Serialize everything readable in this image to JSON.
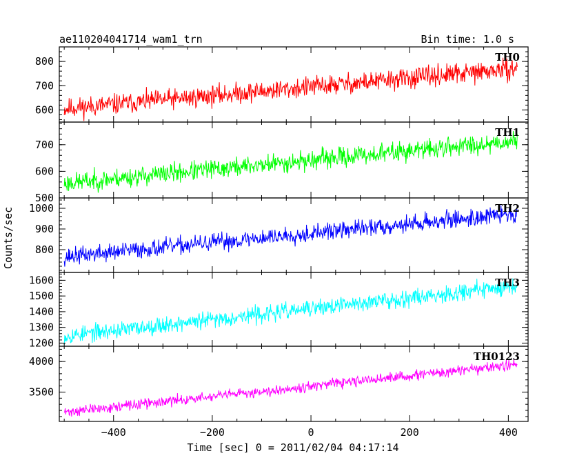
{
  "header": {
    "title": "ae110204041714_wam1_trn",
    "bin_time": "Bin time: 1.0 s"
  },
  "chart_data": {
    "type": "line",
    "xlabel": "Time [sec] 0 = 2011/02/04 04:17:14",
    "ylabel": "Counts/sec",
    "xlim": [
      -510,
      440
    ],
    "x_ticks": [
      -400,
      -200,
      0,
      200,
      400
    ],
    "x_tick_labels": [
      "−400",
      "−200",
      "0",
      "200",
      "400"
    ],
    "x_range": [
      -500,
      418
    ],
    "panels": [
      {
        "name": "TH0",
        "color": "#ff0000",
        "ylim": [
          550,
          860
        ],
        "y_ticks": [
          600,
          700,
          800
        ],
        "start": 605,
        "end": 770,
        "noise": 38,
        "seed": 11
      },
      {
        "name": "TH1",
        "color": "#00ff00",
        "ylim": [
          500,
          785
        ],
        "y_ticks": [
          500,
          600,
          700
        ],
        "start": 555,
        "end": 715,
        "noise": 33,
        "seed": 23
      },
      {
        "name": "TH2",
        "color": "#0000ff",
        "ylim": [
          690,
          1050
        ],
        "y_ticks": [
          800,
          900,
          1000
        ],
        "start": 765,
        "end": 975,
        "noise": 38,
        "seed": 37
      },
      {
        "name": "TH3",
        "color": "#00ffff",
        "ylim": [
          1180,
          1650
        ],
        "y_ticks": [
          1200,
          1300,
          1400,
          1500,
          1600
        ],
        "start": 1245,
        "end": 1565,
        "noise": 48,
        "seed": 53
      },
      {
        "name": "TH0123",
        "color": "#ff00ff",
        "ylim": [
          3020,
          4250
        ],
        "y_ticks": [
          3500,
          4000
        ],
        "start": 3170,
        "end": 3950,
        "noise": 75,
        "seed": 71
      }
    ]
  }
}
